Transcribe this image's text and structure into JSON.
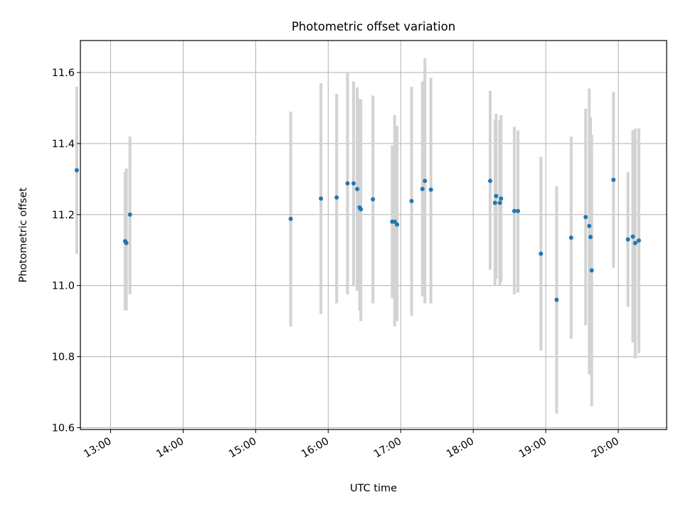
{
  "chart_data": {
    "type": "scatter",
    "title": "Photometric offset variation",
    "xlabel": "UTC time",
    "ylabel": "Photometric offset",
    "x_unit": "UTC hours",
    "xlim": [
      "12:35",
      "20:40"
    ],
    "ylim": [
      10.595,
      11.69
    ],
    "xticks": [
      "13:00",
      "14:00",
      "15:00",
      "16:00",
      "17:00",
      "18:00",
      "19:00",
      "20:00"
    ],
    "yticks": [
      "10.6",
      "10.8",
      "11.0",
      "11.2",
      "11.4",
      "11.6"
    ],
    "grid": true,
    "point_color": "#1f77b4",
    "errorbar_color": "#d3d3d3",
    "points": [
      {
        "x": "12:32",
        "y": 11.325,
        "ylow": 11.09,
        "yhigh": 11.56
      },
      {
        "x": "13:12",
        "y": 11.125,
        "ylow": 10.93,
        "yhigh": 11.32
      },
      {
        "x": "13:13",
        "y": 11.12,
        "ylow": 10.93,
        "yhigh": 11.33
      },
      {
        "x": "13:16",
        "y": 11.2,
        "ylow": 10.975,
        "yhigh": 11.42
      },
      {
        "x": "15:29",
        "y": 11.188,
        "ylow": 10.885,
        "yhigh": 11.49
      },
      {
        "x": "15:54",
        "y": 11.245,
        "ylow": 10.92,
        "yhigh": 11.57
      },
      {
        "x": "16:07",
        "y": 11.248,
        "ylow": 10.95,
        "yhigh": 11.54
      },
      {
        "x": "16:16",
        "y": 11.288,
        "ylow": 10.975,
        "yhigh": 11.6
      },
      {
        "x": "16:21",
        "y": 11.288,
        "ylow": 11.0,
        "yhigh": 11.575
      },
      {
        "x": "16:24",
        "y": 11.272,
        "ylow": 10.985,
        "yhigh": 11.558
      },
      {
        "x": "16:26",
        "y": 11.22,
        "ylow": 10.93,
        "yhigh": 11.525
      },
      {
        "x": "16:27",
        "y": 11.215,
        "ylow": 10.9,
        "yhigh": 11.525
      },
      {
        "x": "16:37",
        "y": 11.243,
        "ylow": 10.95,
        "yhigh": 11.535
      },
      {
        "x": "16:53",
        "y": 11.18,
        "ylow": 10.965,
        "yhigh": 11.395
      },
      {
        "x": "16:55",
        "y": 11.18,
        "ylow": 10.885,
        "yhigh": 11.48
      },
      {
        "x": "16:57",
        "y": 11.172,
        "ylow": 10.9,
        "yhigh": 11.45
      },
      {
        "x": "17:09",
        "y": 11.238,
        "ylow": 10.915,
        "yhigh": 11.56
      },
      {
        "x": "17:18",
        "y": 11.272,
        "ylow": 10.97,
        "yhigh": 11.575
      },
      {
        "x": "17:20",
        "y": 11.295,
        "ylow": 10.95,
        "yhigh": 11.64
      },
      {
        "x": "17:25",
        "y": 11.27,
        "ylow": 10.95,
        "yhigh": 11.585
      },
      {
        "x": "18:14",
        "y": 11.295,
        "ylow": 11.045,
        "yhigh": 11.548
      },
      {
        "x": "18:18",
        "y": 11.233,
        "ylow": 11.0,
        "yhigh": 11.468
      },
      {
        "x": "18:19",
        "y": 11.252,
        "ylow": 11.02,
        "yhigh": 11.484
      },
      {
        "x": "18:22",
        "y": 11.233,
        "ylow": 11.0,
        "yhigh": 11.465
      },
      {
        "x": "18:23",
        "y": 11.245,
        "ylow": 11.01,
        "yhigh": 11.48
      },
      {
        "x": "18:34",
        "y": 11.21,
        "ylow": 10.975,
        "yhigh": 11.447
      },
      {
        "x": "18:37",
        "y": 11.21,
        "ylow": 10.98,
        "yhigh": 11.437
      },
      {
        "x": "18:56",
        "y": 11.09,
        "ylow": 10.817,
        "yhigh": 11.363
      },
      {
        "x": "19:09",
        "y": 10.96,
        "ylow": 10.64,
        "yhigh": 11.28
      },
      {
        "x": "19:21",
        "y": 11.135,
        "ylow": 10.85,
        "yhigh": 11.42
      },
      {
        "x": "19:33",
        "y": 11.193,
        "ylow": 10.888,
        "yhigh": 11.498
      },
      {
        "x": "19:36",
        "y": 11.168,
        "ylow": 10.75,
        "yhigh": 11.555
      },
      {
        "x": "19:37",
        "y": 11.137,
        "ylow": 10.8,
        "yhigh": 11.475
      },
      {
        "x": "19:38",
        "y": 11.043,
        "ylow": 10.66,
        "yhigh": 11.425
      },
      {
        "x": "19:56",
        "y": 11.298,
        "ylow": 11.05,
        "yhigh": 11.545
      },
      {
        "x": "20:08",
        "y": 11.13,
        "ylow": 10.94,
        "yhigh": 11.32
      },
      {
        "x": "20:12",
        "y": 11.138,
        "ylow": 10.84,
        "yhigh": 11.437
      },
      {
        "x": "20:14",
        "y": 11.12,
        "ylow": 10.795,
        "yhigh": 11.442
      },
      {
        "x": "20:17",
        "y": 11.127,
        "ylow": 10.81,
        "yhigh": 11.443
      }
    ]
  }
}
